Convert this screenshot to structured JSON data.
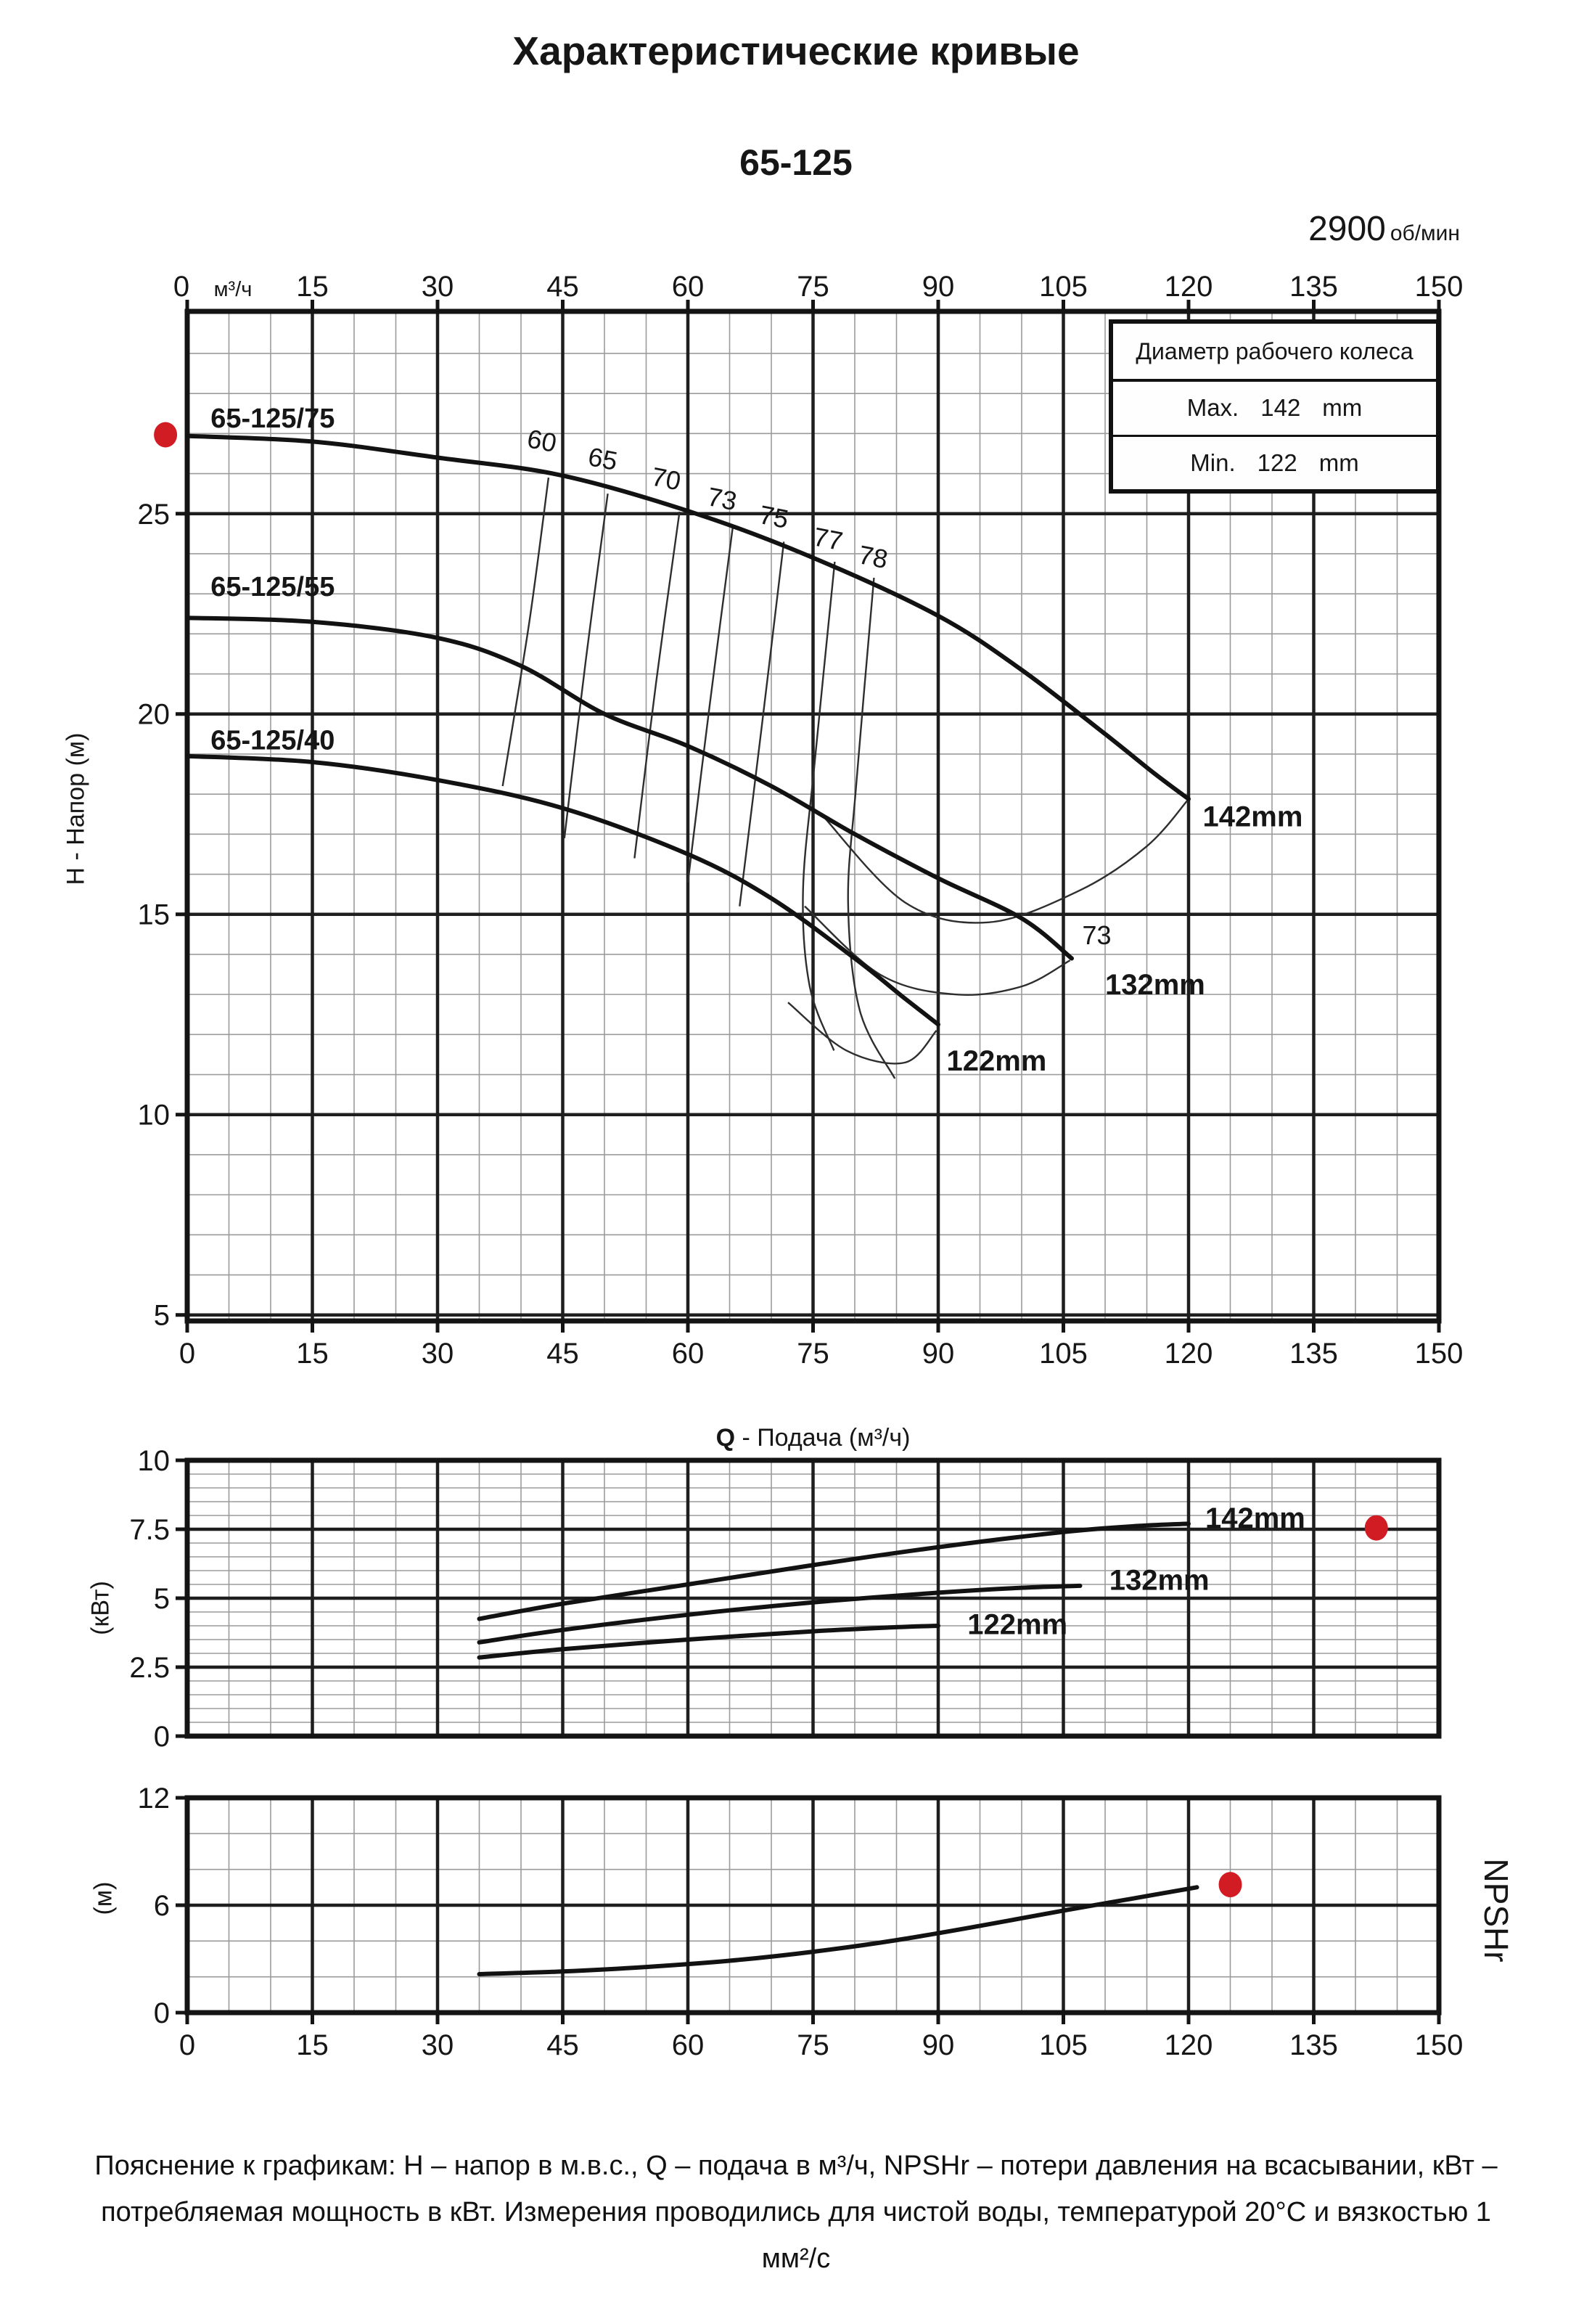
{
  "page": {
    "title": "Характеристические кривые",
    "subtitle": "65-125",
    "rpm_value": "2900",
    "rpm_unit": "об/мин"
  },
  "legend_box": {
    "header": "Диаметр рабочего колеса",
    "rows": [
      {
        "label": "Max.",
        "value": "142",
        "unit": "mm"
      },
      {
        "label": "Min.",
        "value": "122",
        "unit": "mm"
      }
    ]
  },
  "axis_labels": {
    "head_y": "H - Напор (м)",
    "head_x_unit": "м³/ч",
    "q_title_lead": "Q",
    "q_title_rest": " - Подача (м³/ч)",
    "power_y": "(кВт)",
    "npsh_y": "(м)",
    "npsh_right": "NPSHr"
  },
  "footnote_lines": [
    "Пояснение к графикам: H – напор в м.в.с., Q – подача в м³/ч, NPSHr – потери давления на всасывании, кВт –",
    "потребляемая мощность в кВт. Измерения проводились для чистой воды, температурой 20°C и вязкостью 1",
    "мм²/с"
  ],
  "colors": {
    "ink": "#161616",
    "frame": "#141414",
    "major_grid": "#1e1e1e",
    "minor_grid": "#9b9b9b",
    "curve": "#121212",
    "thin_line": "#2e2e2e",
    "accent_red": "#d11c24"
  },
  "chart_data": [
    {
      "id": "head",
      "type": "line",
      "title": "H-Q кривые 65-125",
      "xlabel": "Q - Подача (м³/ч)",
      "ylabel": "H - Напор (м)",
      "x_axis": {
        "min": 0,
        "max": 150,
        "major_ticks": [
          0,
          15,
          30,
          45,
          60,
          75,
          90,
          105,
          120,
          135,
          150
        ],
        "minor_step": 5,
        "labels_top": true,
        "labels_bottom": true
      },
      "y_axis": {
        "min": 4.85,
        "max": 30.05,
        "major_ticks": [
          5,
          10,
          15,
          20,
          25
        ],
        "minor_step": 1
      },
      "series": [
        {
          "name": "65-125/75",
          "impeller": "142mm",
          "points": [
            [
              0,
              26.94
            ],
            [
              15,
              26.8
            ],
            [
              30,
              26.4
            ],
            [
              45,
              25.95
            ],
            [
              61,
              25.0
            ],
            [
              75,
              23.9
            ],
            [
              90,
              22.45
            ],
            [
              100,
              21.1
            ],
            [
              110,
              19.5
            ],
            [
              116,
              18.5
            ],
            [
              120,
              17.88
            ]
          ]
        },
        {
          "name": "65-125/55",
          "impeller": "132mm",
          "points": [
            [
              0,
              22.4
            ],
            [
              15,
              22.3
            ],
            [
              30,
              21.9
            ],
            [
              40,
              21.2
            ],
            [
              50,
              20.0
            ],
            [
              60,
              19.2
            ],
            [
              70,
              18.2
            ],
            [
              80,
              17.0
            ],
            [
              90,
              15.9
            ],
            [
              100,
              14.9
            ],
            [
              106,
              13.9
            ]
          ]
        },
        {
          "name": "65-125/40",
          "impeller": "122mm",
          "points": [
            [
              0,
              18.95
            ],
            [
              15,
              18.8
            ],
            [
              30,
              18.35
            ],
            [
              45,
              17.65
            ],
            [
              60,
              16.5
            ],
            [
              70,
              15.4
            ],
            [
              80,
              13.9
            ],
            [
              86,
              12.9
            ],
            [
              90,
              12.25
            ]
          ]
        }
      ],
      "series_labels": [
        {
          "text": "65-125/75",
          "q": 2.8,
          "v": 27.15
        },
        {
          "text": "65-125/55",
          "q": 2.8,
          "v": 22.95
        },
        {
          "text": "65-125/40",
          "q": 2.8,
          "v": 19.12
        }
      ],
      "impeller_labels": [
        {
          "text": "142mm",
          "q": 121.7,
          "v": 17.2
        },
        {
          "text": "132mm",
          "q": 110.0,
          "v": 13.0
        },
        {
          "text": "122mm",
          "q": 91.0,
          "v": 11.1
        }
      ],
      "efficiency_lines": [
        {
          "label": "60",
          "label_q": 42.3,
          "label_v": 26.6,
          "points": [
            [
              43.3,
              25.9
            ],
            [
              41.0,
              22.3
            ],
            [
              37.8,
              18.2
            ]
          ]
        },
        {
          "label": "65",
          "label_q": 49.6,
          "label_v": 26.15,
          "points": [
            [
              50.4,
              25.5
            ],
            [
              47.8,
              21.4
            ],
            [
              45.2,
              16.9
            ]
          ]
        },
        {
          "label": "70",
          "label_q": 57.2,
          "label_v": 25.65,
          "points": [
            [
              59.0,
              25.05
            ],
            [
              56.2,
              20.8
            ],
            [
              53.6,
              16.4
            ]
          ]
        },
        {
          "label": "73",
          "label_q": 63.9,
          "label_v": 25.15,
          "points": [
            [
              65.4,
              24.7
            ],
            [
              62.6,
              20.2
            ],
            [
              60.0,
              15.8
            ]
          ]
        },
        {
          "label": "75",
          "label_q": 70.1,
          "label_v": 24.7,
          "points": [
            [
              71.5,
              24.3
            ],
            [
              68.8,
              19.6
            ],
            [
              66.2,
              15.2
            ]
          ]
        },
        {
          "label": "77",
          "label_q": 76.6,
          "label_v": 24.15,
          "points": [
            [
              77.6,
              23.8
            ],
            [
              75.2,
              18.8
            ],
            [
              73.8,
              15.6
            ],
            [
              74.6,
              13.2
            ],
            [
              77.5,
              11.6
            ]
          ]
        },
        {
          "label": "78",
          "label_q": 82.0,
          "label_v": 23.7,
          "points": [
            [
              82.3,
              23.4
            ],
            [
              80.2,
              18.3
            ],
            [
              79.2,
              15.3
            ],
            [
              80.6,
              12.6
            ],
            [
              84.8,
              10.9
            ]
          ]
        }
      ],
      "iso_loops": [
        {
          "points": [
            [
              76,
              17.5
            ],
            [
              86,
              15.3
            ],
            [
              96,
              14.8
            ],
            [
              107,
              15.6
            ],
            [
              115,
              16.7
            ],
            [
              119.9,
              17.85
            ]
          ]
        },
        {
          "points": [
            [
              74,
              15.2
            ],
            [
              83,
              13.5
            ],
            [
              92,
              13.0
            ],
            [
              100,
              13.2
            ],
            [
              105.8,
              13.85
            ]
          ]
        },
        {
          "points": [
            [
              72,
              12.8
            ],
            [
              79,
              11.6
            ],
            [
              86,
              11.3
            ],
            [
              89.8,
              12.1
            ]
          ]
        }
      ],
      "loop_labels": [
        {
          "text": "73",
          "q": 109,
          "v": 14.25
        }
      ],
      "red_dot": {
        "q": -2.6,
        "v": 26.97
      }
    },
    {
      "id": "power",
      "type": "line",
      "title": "Потребляемая мощность",
      "ylabel": "(кВт)",
      "x_axis": {
        "min": 0,
        "max": 150,
        "major_ticks": [
          0,
          15,
          30,
          45,
          60,
          75,
          90,
          105,
          120,
          135,
          150
        ],
        "minor_step": 5,
        "labels_top": false,
        "labels_bottom": false
      },
      "y_axis": {
        "min": 0,
        "max": 10,
        "major_ticks": [
          0,
          2.5,
          5,
          7.5,
          10
        ],
        "minor_step": 0.5
      },
      "series": [
        {
          "name": "142mm",
          "points": [
            [
              35,
              4.25
            ],
            [
              45,
              4.8
            ],
            [
              60,
              5.5
            ],
            [
              75,
              6.2
            ],
            [
              90,
              6.85
            ],
            [
              105,
              7.4
            ],
            [
              114,
              7.62
            ],
            [
              120,
              7.7
            ]
          ]
        },
        {
          "name": "132mm",
          "points": [
            [
              35,
              3.4
            ],
            [
              45,
              3.85
            ],
            [
              60,
              4.4
            ],
            [
              75,
              4.85
            ],
            [
              90,
              5.2
            ],
            [
              100,
              5.38
            ],
            [
              107,
              5.45
            ]
          ]
        },
        {
          "name": "122mm",
          "points": [
            [
              35,
              2.85
            ],
            [
              45,
              3.15
            ],
            [
              60,
              3.5
            ],
            [
              75,
              3.8
            ],
            [
              85,
              3.95
            ],
            [
              90,
              4.0
            ]
          ]
        }
      ],
      "impeller_labels": [
        {
          "text": "142mm",
          "q": 122.0,
          "v": 7.55
        },
        {
          "text": "132mm",
          "q": 110.5,
          "v": 5.3
        },
        {
          "text": "122mm",
          "q": 93.5,
          "v": 3.7
        }
      ],
      "red_dot": {
        "q": 142.5,
        "v": 7.55
      }
    },
    {
      "id": "npsh",
      "type": "line",
      "title": "NPSHr",
      "ylabel": "(м)",
      "x_axis": {
        "min": 0,
        "max": 150,
        "major_ticks": [
          0,
          15,
          30,
          45,
          60,
          75,
          90,
          105,
          120,
          135,
          150
        ],
        "minor_step": 5,
        "labels_top": false,
        "labels_bottom": true
      },
      "y_axis": {
        "min": 0,
        "max": 12,
        "major_ticks": [
          0,
          6,
          12
        ],
        "minor_step": 2
      },
      "series": [
        {
          "name": "NPSHr",
          "points": [
            [
              35,
              2.15
            ],
            [
              45,
              2.3
            ],
            [
              55,
              2.55
            ],
            [
              65,
              2.9
            ],
            [
              75,
              3.4
            ],
            [
              85,
              4.05
            ],
            [
              95,
              4.85
            ],
            [
              105,
              5.7
            ],
            [
              113,
              6.35
            ],
            [
              121,
              7.0
            ]
          ]
        }
      ],
      "impeller_labels": [],
      "red_dot": {
        "q": 125,
        "v": 7.15
      }
    }
  ]
}
